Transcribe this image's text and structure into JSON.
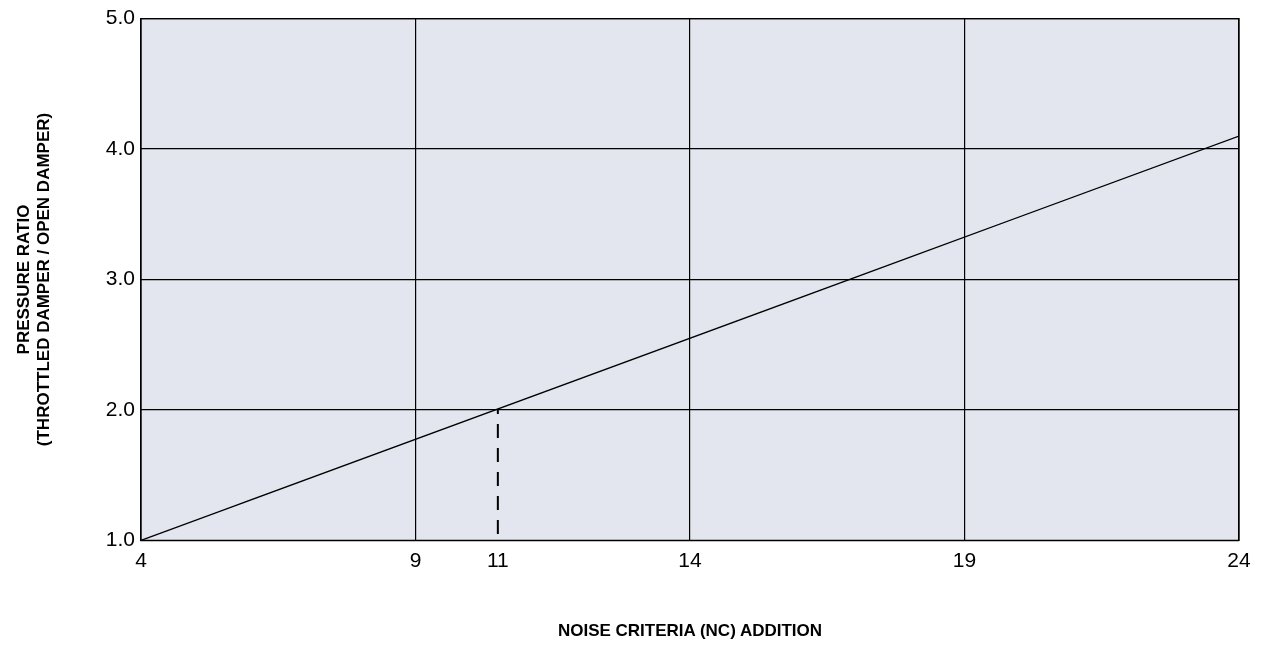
{
  "chart_data": {
    "type": "line",
    "xlabel": "NOISE CRITERIA (NC) ADDITION",
    "ylabel": "PRESSURE RATIO\n(THROTTLED DAMPER / OPEN DAMPER)",
    "series": [
      {
        "color": "#000000",
        "x": [
          4,
          24
        ],
        "values": [
          1.0,
          4.1
        ]
      },
      {
        "color": "#000000",
        "x": [
          10.5,
          10.5
        ],
        "values": [
          1.05,
          2.0
        ],
        "line_style": "dashed"
      }
    ],
    "xlim": [
      4,
      24
    ],
    "xticks": [
      4,
      9,
      {
        "value": 10.5,
        "label": "11"
      },
      14,
      19,
      24
    ],
    "ylim": [
      1,
      5
    ],
    "yticks": [
      {
        "value": 1,
        "label": "1.0"
      },
      {
        "value": 2,
        "label": "2.0"
      },
      {
        "value": 3,
        "label": "3.0"
      },
      {
        "value": 4,
        "label": "4.0"
      },
      {
        "value": 5,
        "label": "5.0"
      }
    ],
    "grid": true,
    "legend": false,
    "marker": "none",
    "line_style": "solid"
  }
}
